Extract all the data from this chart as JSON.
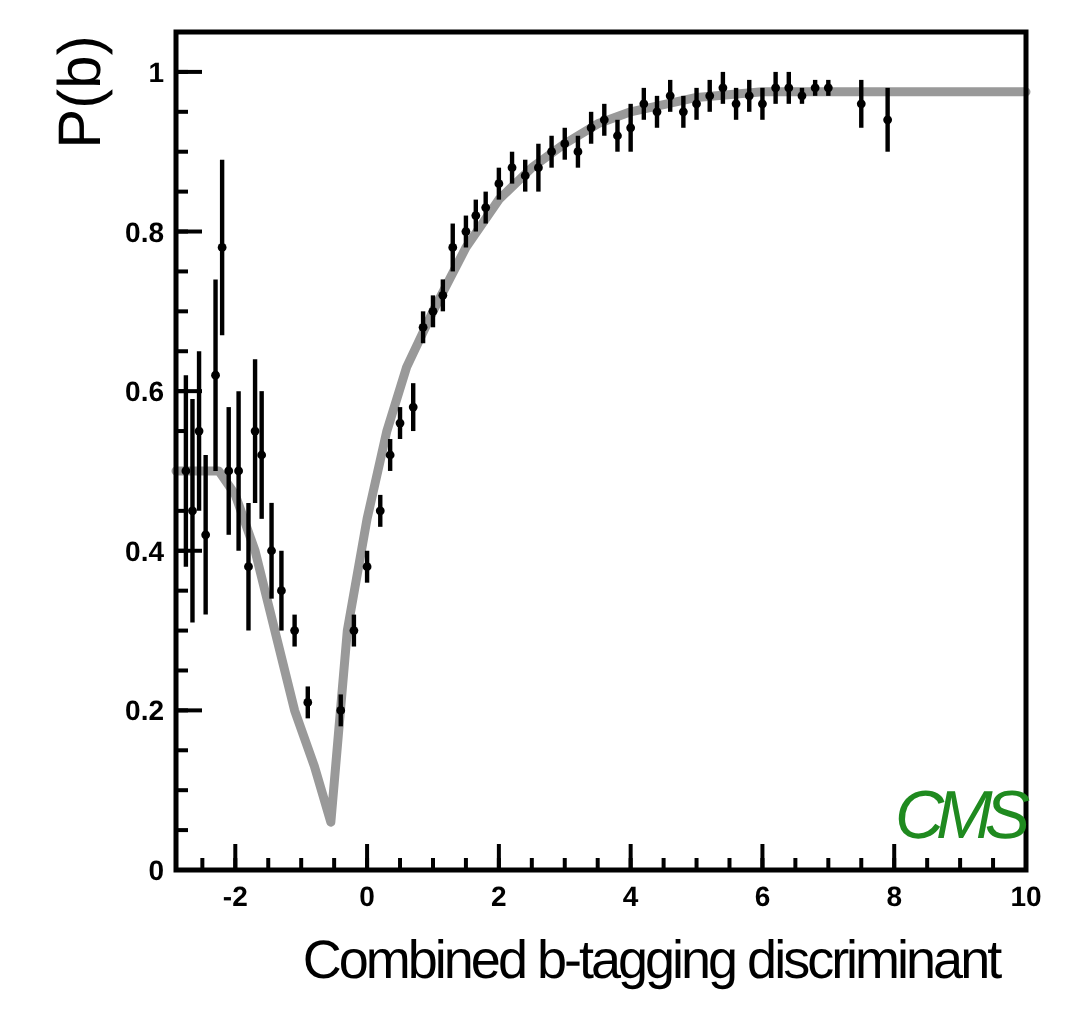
{
  "chart_data": {
    "type": "scatter",
    "xlabel": "Combined b-tagging discriminant",
    "ylabel": "P(b)",
    "xlim": [
      -2.9,
      10
    ],
    "ylim": [
      0,
      1.05
    ],
    "xticks": [
      -2,
      0,
      2,
      4,
      6,
      8,
      10
    ],
    "yticks": [
      0,
      0.2,
      0.4,
      0.6,
      0.8,
      1
    ],
    "marker": "circle",
    "annotations": [
      "CMS"
    ],
    "series": [
      {
        "color": "#000000",
        "x": [
          -2.75,
          -2.65,
          -2.55,
          -2.45,
          -2.3,
          -2.2,
          -2.1,
          -1.95,
          -1.8,
          -1.7,
          -1.6,
          -1.45,
          -1.3,
          -1.1,
          -0.9,
          -0.4,
          -0.2,
          0.0,
          0.2,
          0.35,
          0.5,
          0.7,
          0.85,
          1.0,
          1.15,
          1.3,
          1.5,
          1.65,
          1.8,
          2.0,
          2.2,
          2.4,
          2.6,
          2.8,
          3.0,
          3.2,
          3.4,
          3.6,
          3.8,
          4.0,
          4.2,
          4.4,
          4.6,
          4.8,
          5.0,
          5.2,
          5.4,
          5.6,
          5.8,
          6.0,
          6.2,
          6.4,
          6.6,
          6.8,
          7.0,
          7.5,
          7.9
        ],
        "values": [
          0.5,
          0.45,
          0.55,
          0.42,
          0.62,
          0.78,
          0.5,
          0.5,
          0.38,
          0.55,
          0.52,
          0.4,
          0.35,
          0.3,
          0.21,
          0.2,
          0.3,
          0.38,
          0.45,
          0.52,
          0.56,
          0.58,
          0.68,
          0.7,
          0.72,
          0.78,
          0.8,
          0.82,
          0.83,
          0.86,
          0.88,
          0.87,
          0.88,
          0.9,
          0.91,
          0.9,
          0.93,
          0.94,
          0.92,
          0.93,
          0.96,
          0.95,
          0.97,
          0.95,
          0.96,
          0.97,
          0.98,
          0.96,
          0.97,
          0.96,
          0.98,
          0.98,
          0.97,
          0.98,
          0.98,
          0.96,
          0.94
        ],
        "errors": [
          0.12,
          0.14,
          0.1,
          0.1,
          0.12,
          0.11,
          0.08,
          0.1,
          0.08,
          0.09,
          0.08,
          0.06,
          0.05,
          0.02,
          0.02,
          0.02,
          0.02,
          0.02,
          0.02,
          0.02,
          0.02,
          0.03,
          0.02,
          0.02,
          0.02,
          0.03,
          0.02,
          0.02,
          0.02,
          0.02,
          0.02,
          0.02,
          0.03,
          0.02,
          0.02,
          0.02,
          0.02,
          0.02,
          0.02,
          0.03,
          0.02,
          0.02,
          0.02,
          0.02,
          0.02,
          0.02,
          0.02,
          0.02,
          0.02,
          0.02,
          0.02,
          0.02,
          0.01,
          0.01,
          0.01,
          0.03,
          0.04
        ]
      },
      {
        "type": "line",
        "color": "#999999",
        "marker": "none",
        "x": [
          -2.9,
          -2.5,
          -2.25,
          -2.0,
          -1.7,
          -1.4,
          -1.1,
          -0.8,
          -0.55,
          -0.3,
          0.0,
          0.3,
          0.6,
          1.0,
          1.5,
          2.0,
          2.5,
          3.0,
          3.5,
          4.0,
          5.0,
          6.0,
          7.0,
          10.0
        ],
        "values": [
          0.5,
          0.5,
          0.5,
          0.47,
          0.4,
          0.3,
          0.2,
          0.13,
          0.06,
          0.3,
          0.44,
          0.55,
          0.63,
          0.7,
          0.78,
          0.84,
          0.88,
          0.91,
          0.935,
          0.95,
          0.968,
          0.975,
          0.975,
          0.975
        ]
      }
    ]
  }
}
